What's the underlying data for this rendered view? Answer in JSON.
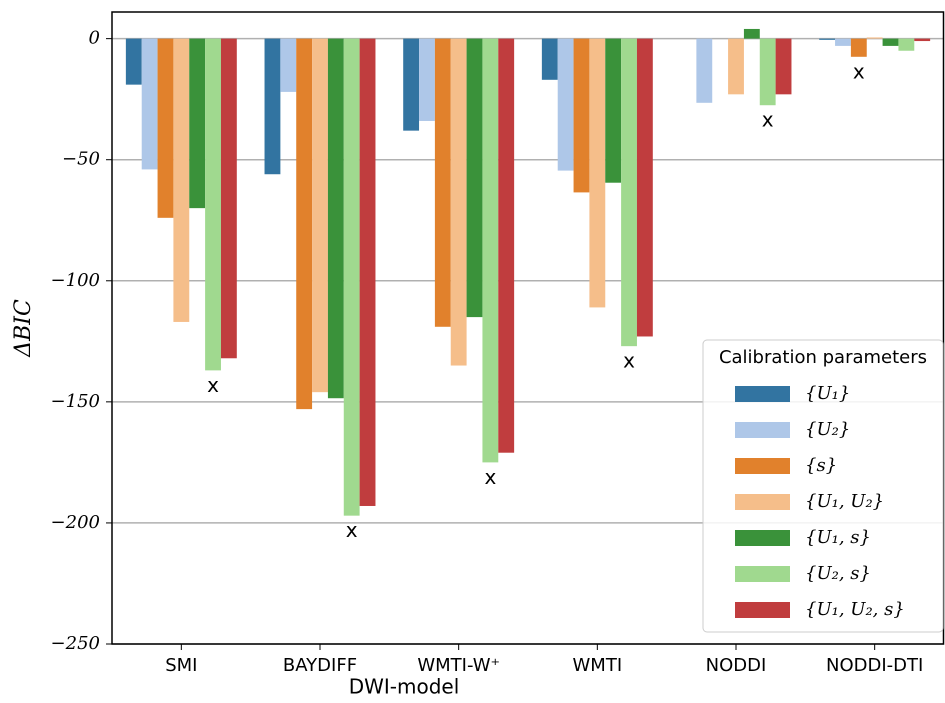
{
  "chart_data": {
    "type": "bar",
    "xlabel": "DWI-model",
    "ylabel": "ΔBIC",
    "categories": [
      "SMI",
      "BAYDIFF",
      "WMTI-W⁺",
      "WMTI",
      "NODDI",
      "NODDI-DTI"
    ],
    "legend_title": "Calibration parameters",
    "legend": "lower right",
    "grid": true,
    "best_marker": "x",
    "ylim": [
      -250,
      11
    ],
    "yticks": [
      0,
      {
        "value": -50,
        "label": "−50"
      },
      {
        "value": -100,
        "label": "−100"
      },
      {
        "value": -150,
        "label": "−150"
      },
      {
        "value": -200,
        "label": "−200"
      },
      {
        "value": -250,
        "label": "−250"
      }
    ],
    "series": [
      {
        "name": "{U₁}",
        "color": "#3274a1",
        "values": [
          -19,
          -56,
          -38,
          -17,
          0,
          -0.5
        ]
      },
      {
        "name": "{U₂}",
        "color": "#aec7e8",
        "values": [
          -54,
          -22,
          -34,
          -54.5,
          -26.5,
          -3
        ]
      },
      {
        "name": "{s}",
        "color": "#e1812c",
        "values": [
          -74,
          -153,
          -119,
          -63.5,
          0,
          -7.5
        ]
      },
      {
        "name": "{U₁, U₂}",
        "color": "#f5be8a",
        "values": [
          -117,
          -146,
          -135,
          -111,
          -23,
          0.5
        ]
      },
      {
        "name": "{U₁, s}",
        "color": "#3a923a",
        "values": [
          -70,
          -148.5,
          -115,
          -59.5,
          4,
          -3
        ]
      },
      {
        "name": "{U₂, s}",
        "color": "#a0d98f",
        "values": [
          -137,
          -197,
          -175,
          -127,
          -27.5,
          -5
        ]
      },
      {
        "name": "{U₁, U₂, s}",
        "color": "#c03d3e",
        "values": [
          -132,
          -193,
          -171,
          -123,
          -23,
          -1
        ]
      }
    ]
  }
}
